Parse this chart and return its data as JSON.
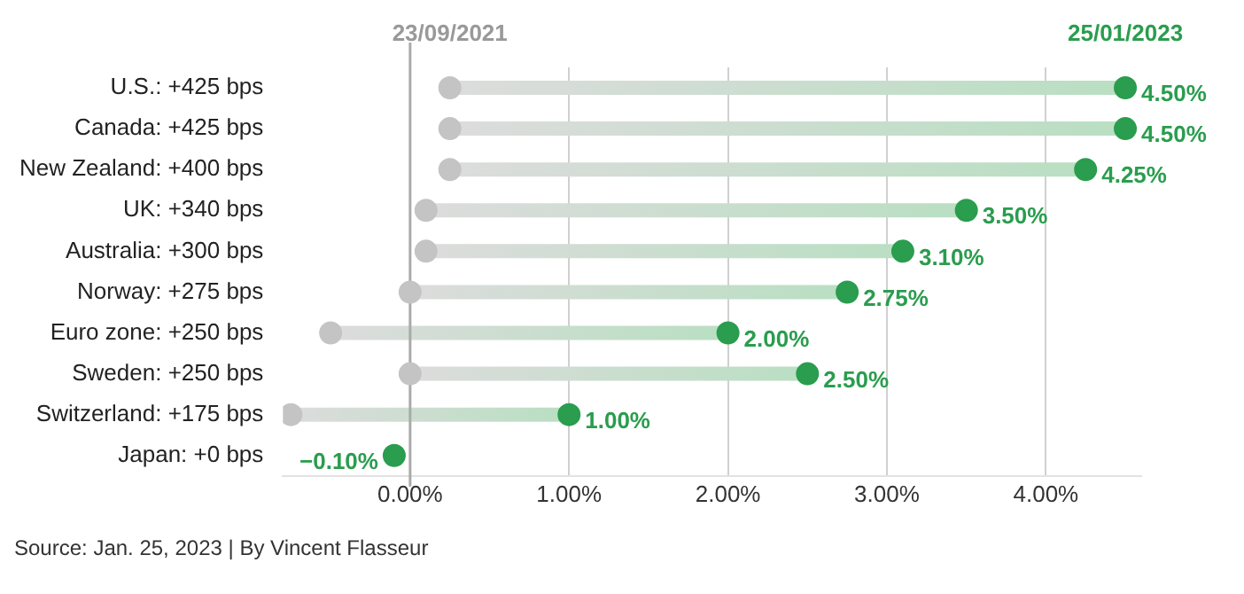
{
  "chart_data": {
    "type": "scatter",
    "orientation": "horizontal",
    "categories": [
      "U.S.: +425 bps",
      "Canada: +425 bps",
      "New Zealand: +400 bps",
      "UK: +340 bps",
      "Australia: +300 bps",
      "Norway: +275 bps",
      "Euro zone: +250 bps",
      "Sweden: +250 bps",
      "Switzerland: +175 bps",
      "Japan: +0 bps"
    ],
    "series": [
      {
        "color": "#c4c4c4",
        "values": [
          0.25,
          0.25,
          0.25,
          0.1,
          0.1,
          0,
          -0.5,
          0,
          -0.75,
          null
        ]
      },
      {
        "color": "#2a9d4e",
        "values": [
          4.5,
          4.5,
          4.25,
          3.5,
          3.1,
          2.75,
          2,
          2.5,
          1,
          -0.1
        ],
        "value_labels": [
          "4.50%",
          "4.50%",
          "4.25%",
          "3.50%",
          "3.10%",
          "2.75%",
          "2.00%",
          "2.50%",
          "1.00%",
          "−0.10%"
        ]
      }
    ],
    "xlim": [
      -0.8,
      4.6
    ],
    "xticks": [
      {
        "value": 0,
        "label": "0.00%"
      },
      {
        "value": 1,
        "label": "1.00%"
      },
      {
        "value": 2,
        "label": "2.00%"
      },
      {
        "value": 3,
        "label": "3.00%"
      },
      {
        "value": 4,
        "label": "4.00%"
      }
    ],
    "ref_lines": [
      {
        "axis": "x",
        "value": 0,
        "color": "#aaaaaa"
      }
    ],
    "grid": "x",
    "marker": "circle",
    "legend": false,
    "annotations": [
      "23/09/2021",
      "25/01/2023",
      "Source: Jan. 25, 2023 | By Vincent Flasseur"
    ]
  }
}
